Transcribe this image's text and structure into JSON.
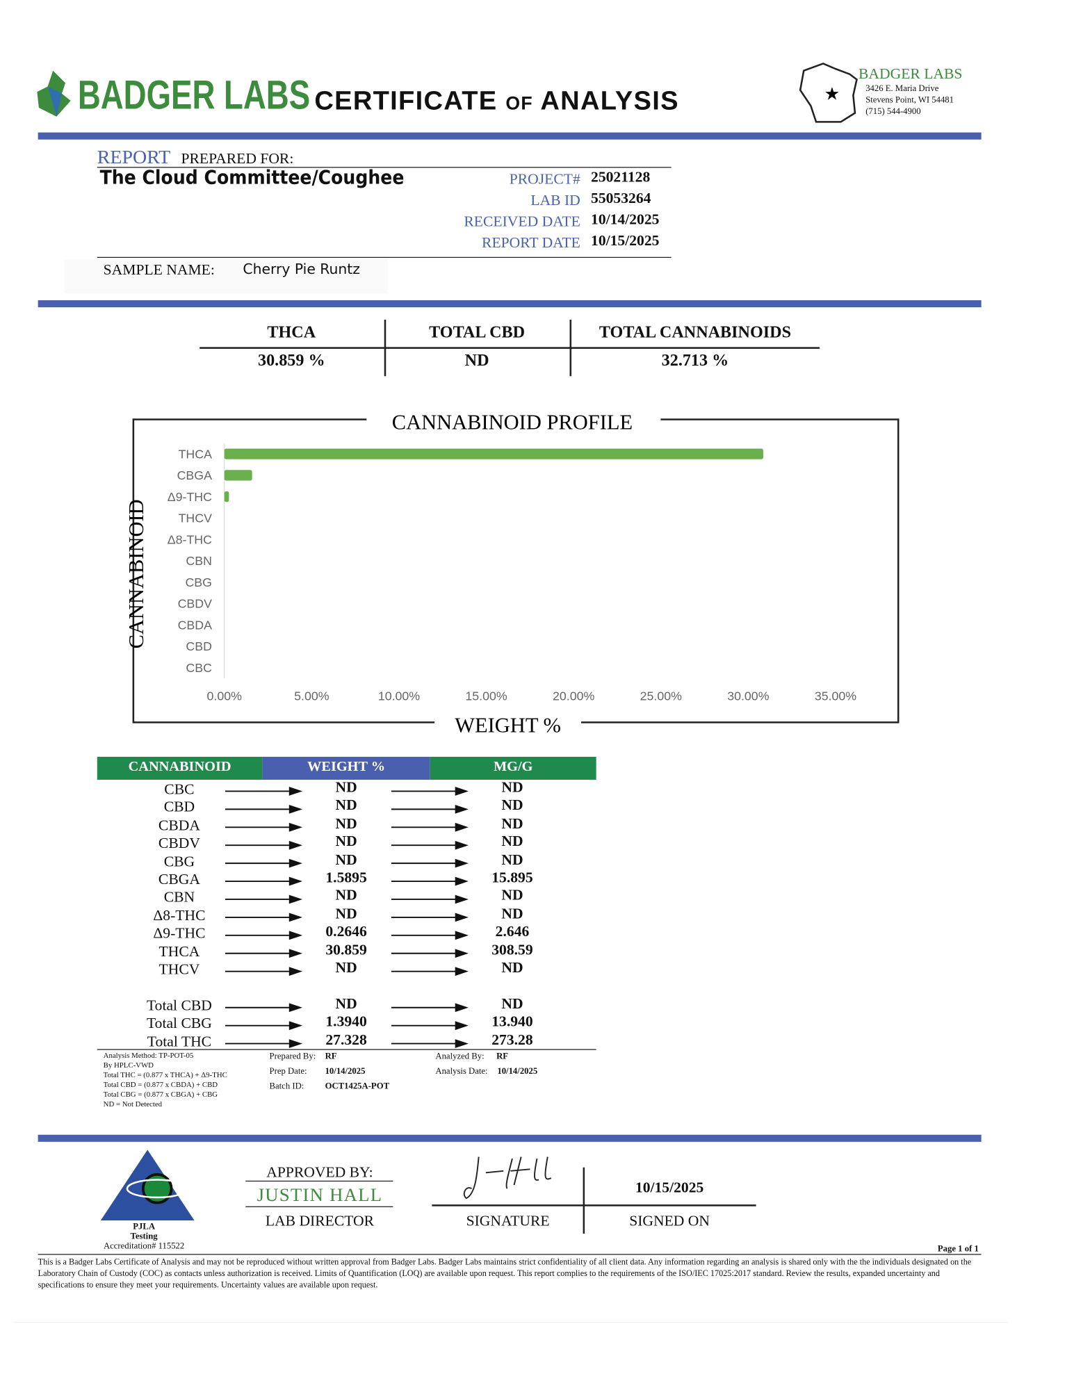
{
  "header": {
    "brand": "BADGER LABS",
    "title": "CERTIFICATE of ANALYSIS",
    "address": {
      "name": "BADGER LABS",
      "lines": [
        "3426 E. Maria Drive",
        "Stevens Point, WI 54481",
        "(715) 544-4900"
      ]
    }
  },
  "report": {
    "label_report": "REPORT",
    "label_prepared": "PREPARED FOR:",
    "client": "The Cloud Committee/Coughee",
    "fields": [
      {
        "label": "PROJECT#",
        "value": "25021128"
      },
      {
        "label": "LAB ID",
        "value": "55053264"
      },
      {
        "label": "RECEIVED DATE",
        "value": "10/14/2025"
      },
      {
        "label": "REPORT DATE",
        "value": "10/15/2025"
      }
    ],
    "sample_label": "SAMPLE NAME:",
    "sample_name": "Cherry Pie Runtz"
  },
  "summary": {
    "headers": [
      "THCA",
      "TOTAL CBD",
      "TOTAL CANNABINOIDS"
    ],
    "values": [
      "30.859 %",
      "ND",
      "32.713 %"
    ]
  },
  "chart_data": {
    "type": "bar",
    "orientation": "horizontal",
    "title": "CANNABINOID PROFILE",
    "y_label": "CANNABINOID",
    "x_label": "WEIGHT %",
    "categories": [
      "THCA",
      "CBGA",
      "Δ9-THC",
      "THCV",
      "Δ8-THC",
      "CBN",
      "CBG",
      "CBDV",
      "CBDA",
      "CBD",
      "CBC"
    ],
    "values": [
      30.859,
      1.5895,
      0.2646,
      0,
      0,
      0,
      0,
      0,
      0,
      0,
      0
    ],
    "color": "#6ab04c",
    "xlim": [
      0,
      35
    ],
    "xticks": [
      {
        "value": 0,
        "label": "0.00%"
      },
      {
        "value": 5,
        "label": "5.00%"
      },
      {
        "value": 10,
        "label": "10.00%"
      },
      {
        "value": 15,
        "label": "15.00%"
      },
      {
        "value": 20,
        "label": "20.00%"
      },
      {
        "value": 25,
        "label": "25.00%"
      },
      {
        "value": 30,
        "label": "30.00%"
      },
      {
        "value": 35,
        "label": "35.00%"
      }
    ]
  },
  "table": {
    "headers": [
      "CANNABINOID",
      "WEIGHT %",
      "MG/G"
    ],
    "rows": [
      [
        "CBC",
        "ND",
        "ND"
      ],
      [
        "CBD",
        "ND",
        "ND"
      ],
      [
        "CBDA",
        "ND",
        "ND"
      ],
      [
        "CBDV",
        "ND",
        "ND"
      ],
      [
        "CBG",
        "ND",
        "ND"
      ],
      [
        "CBGA",
        "1.5895",
        "15.895"
      ],
      [
        "CBN",
        "ND",
        "ND"
      ],
      [
        "Δ8-THC",
        "ND",
        "ND"
      ],
      [
        "Δ9-THC",
        "0.2646",
        "2.646"
      ],
      [
        "THCA",
        "30.859",
        "308.59"
      ],
      [
        "THCV",
        "ND",
        "ND"
      ]
    ],
    "totals": [
      [
        "Total CBD",
        "ND",
        "ND"
      ],
      [
        "Total CBG",
        "1.3940",
        "13.940"
      ],
      [
        "Total THC",
        "27.328",
        "273.28"
      ]
    ]
  },
  "notes": {
    "method": [
      "Analysis Method: TP-POT-05",
      "By HPLC-VWD",
      "Total THC = (0.877 x THCA) + Δ9-THC",
      "Total CBD = (0.877 x CBDA) + CBD",
      "Total CBG = (0.877 x CBGA) + CBG",
      "ND = Not Detected"
    ],
    "prep": [
      {
        "label": "Prepared By:",
        "value": "RF"
      },
      {
        "label": "Prep Date:",
        "value": "10/14/2025"
      },
      {
        "label": "Batch ID:",
        "value": "OCT1425A-POT"
      }
    ],
    "analysis": [
      {
        "label": "Analyzed By:",
        "value": "RF"
      },
      {
        "label": "Analysis Date:",
        "value": "10/14/2025"
      }
    ]
  },
  "footer": {
    "approved_label": "APPROVED BY:",
    "name": "JUSTIN HALL",
    "role": "LAB DIRECTOR",
    "signature_label": "SIGNATURE",
    "signed_date": "10/15/2025",
    "signed_label": "SIGNED ON",
    "accreditation": [
      "PJLA",
      "Testing",
      "Accreditation# 115522"
    ],
    "page": "Page 1 of 1",
    "disclaimer": "This is a Badger Labs Certificate of Analysis and may not be reproduced without written approval from Badger Labs. Badger Labs maintains strict confidentiality of all client data. Any information regarding an analysis is shared only with the the individuals designated on the Laboratory Chain of Custody (COC) as contacts unless authorization is received. Limits of Quantification (LOQ) are available upon request. This report complies to the requirements of the ISO/IEC 17025:2017 standard. Review the results, expanded uncertainty and specifications to ensure they meet your requirements. Uncertainty values are available upon request."
  }
}
